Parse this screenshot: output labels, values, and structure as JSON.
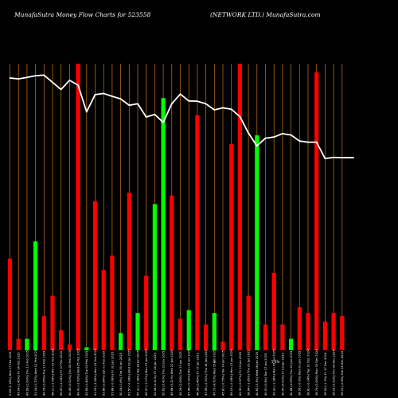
{
  "header": {
    "left": "MunafaSutra  Money Flow  Charts for 523558",
    "right": "(NETWORK LTD.) MunafaSutra.com"
  },
  "colors": {
    "background": "#000000",
    "up": "#00ff00",
    "down": "#ff0000",
    "grid": "#c8761a",
    "price": "#ffffff"
  },
  "chart_data": {
    "type": "bar",
    "title": "",
    "xlabel": "",
    "ylabel": "",
    "ylim": [
      0,
      100
    ],
    "grid": true,
    "categories": [
      "Mon 17 Feb 2025",
      "Fri 14 Feb 2025",
      "Thu 13 Feb 2025",
      "Wed 12 Feb 2025",
      "Tue 11 Feb 2025",
      "Mon 10 Feb 2025",
      "Fri 07 Feb 2025",
      "Thu 06 Feb 2025",
      "Wed 05 Feb 2025",
      "Tue 04 Feb 2025",
      "Mon 03 Feb 2025",
      "Sat 01 Feb 2025",
      "Fri 31 Jan 2025",
      "Thu 30 Jan 2025",
      "Wed 29 Jan 2025",
      "Tue 28 Jan 2025",
      "Mon 27 Jan 2025",
      "Fri 24 Jan 2025",
      "Thu 23 Jan 2025",
      "Wed 22 Jan 2025",
      "Tue 21 Jan 2025",
      "Mon 20 Jan 2025",
      "Fri 17 Jan 2025",
      "Thu 16 Jan 2025",
      "Wed 15 Jan 2025",
      "Tue 14 Jan 2025",
      "Mon 13 Jan 2025",
      "Fri 10 Jan 2025",
      "Thu 09 Jan 2025",
      "Wed 08 Jan 2025",
      "Tue 07 Jan 2025",
      "Mon 06 Jan 2025",
      "Fri 03 Jan 2025",
      "Thu 02 Jan 2025",
      "Wed 01 Jan 2025",
      "Tue 31 Dec 2024",
      "Mon 30 Dec 2024",
      "Fri 27 Dec 2024",
      "Thu 26 Dec 2024",
      "Tue 24 Dec 2024"
    ],
    "tick_labels": [
      "0.89 (1.16%)",
      "49.04 (1.45%)",
      "49.69 (2.09%)",
      "51.04 (1.73%)",
      "49.74 (3.06%)",
      "48.11 (-2.64%)",
      "49.47 (-2.04%)",
      "50.45 (0.02%)",
      "49.41 (-2.63%)",
      "52.64 (1.44%)",
      "51.05 (-3.45%)",
      "53.86 (3.94%)",
      "51.88 (-0.08%)",
      "50.18 (1.6%)",
      "51.57 (-0.04%)",
      "47.31 (-1.38%)",
      "49.07 (-1.07%)",
      "52.48 (4.11%)",
      "50.62 (0.42%)",
      "49.68 (0.21%)",
      "49.26 (0.06%)",
      "47.46 (-0.32%)",
      "48.38 (3.46%)",
      "47.96 (-2.91%)",
      "47.72 (4.72%)",
      "45.81 (-0.75%)",
      "45.19 (-0.08%)",
      "41.53 (-0.67%)",
      "38.64 (-3.85%)",
      "40.82 (0.3%)",
      "40.91 (3.9%)",
      "39.33 (-1.28%)",
      "40.47 (0.03%)",
      "40.88 (0.06%)",
      "38.95 (-0.6%)",
      "38.81 (-0.04%)",
      "38.74 (0.06%)",
      "36.04 (-1.3%)",
      "36.16 (0.33%)",
      "36.12 (-0.8%)"
    ],
    "series": [
      {
        "key": "money_flow",
        "values": [
          32,
          4,
          4,
          38,
          12,
          19,
          7,
          2,
          100,
          1,
          52,
          28,
          33,
          6,
          55,
          13,
          26,
          51,
          88,
          54,
          11,
          14,
          82,
          9,
          13,
          3,
          72,
          100,
          19,
          75,
          9,
          27,
          9,
          4,
          15,
          13,
          97,
          10,
          13,
          12
        ],
        "directions": [
          "down",
          "down",
          "up",
          "up",
          "down",
          "down",
          "down",
          "down",
          "down",
          "up",
          "down",
          "down",
          "down",
          "up",
          "down",
          "up",
          "down",
          "up",
          "up",
          "down",
          "down",
          "up",
          "down",
          "down",
          "up",
          "down",
          "down",
          "down",
          "down",
          "up",
          "down",
          "down",
          "down",
          "up",
          "down",
          "down",
          "down",
          "down",
          "down",
          "down"
        ]
      },
      {
        "key": "price",
        "values": [
          95,
          94.7,
          95.2,
          95.8,
          96,
          93.5,
          91,
          94.2,
          92.5,
          83.2,
          89.2,
          89.6,
          88.6,
          87.7,
          85.5,
          86,
          81.4,
          82.3,
          79.5,
          86,
          89.4,
          87,
          86.9,
          86,
          83.9,
          84.6,
          84.1,
          81.5,
          75.8,
          71.3,
          74,
          74.4,
          75.6,
          75.1,
          73,
          72.6,
          72.6,
          66.9,
          67.3,
          67.2
        ]
      }
    ],
    "annotations": [
      "5",
      "5 1%"
    ]
  }
}
